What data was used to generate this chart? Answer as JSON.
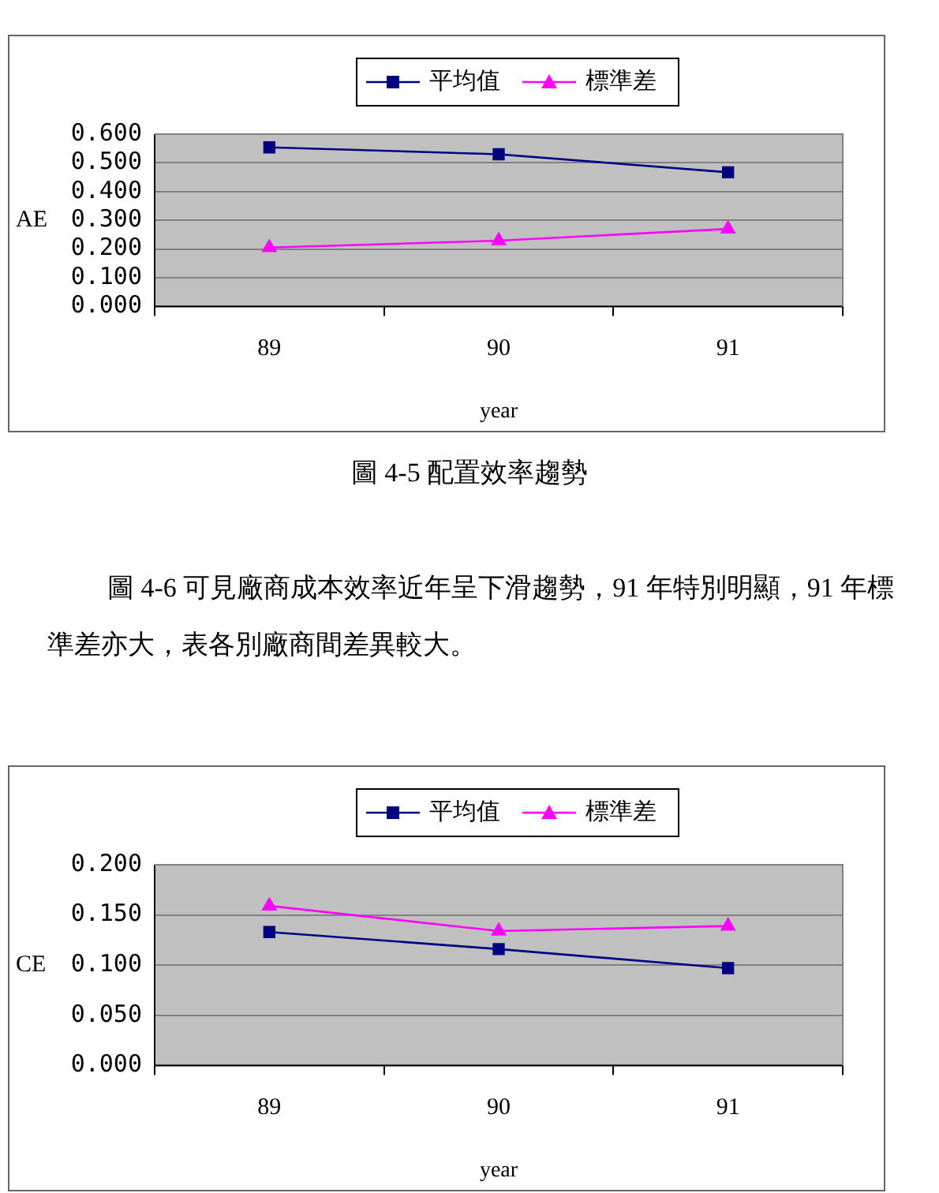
{
  "chart_data": [
    {
      "type": "line",
      "categories": [
        "89",
        "90",
        "91"
      ],
      "xlabel": "year",
      "ylabel": "AE",
      "ylim": [
        0,
        0.6
      ],
      "yticks": [
        {
          "value": 0,
          "label": "0.000"
        },
        {
          "value": 0.1,
          "label": "0.100"
        },
        {
          "value": 0.2,
          "label": "0.200"
        },
        {
          "value": 0.3,
          "label": "0.300"
        },
        {
          "value": 0.4,
          "label": "0.400"
        },
        {
          "value": 0.5,
          "label": "0.500"
        },
        {
          "value": 0.6,
          "label": "0.600"
        }
      ],
      "series": [
        {
          "name": "平均值",
          "color": "#000080",
          "marker": "square",
          "values": [
            0.554,
            0.53,
            0.467
          ]
        },
        {
          "name": "標準差",
          "color": "#ff00ff",
          "marker": "triangle",
          "values": [
            0.205,
            0.229,
            0.27
          ]
        }
      ],
      "grid": "y",
      "legend": "top",
      "annotations": [
        "圖 4-5 配置效率趨勢"
      ]
    },
    {
      "type": "line",
      "categories": [
        "89",
        "90",
        "91"
      ],
      "xlabel": "year",
      "ylabel": "CE",
      "ylim": [
        0,
        0.2
      ],
      "yticks": [
        {
          "value": 0,
          "label": "0.000"
        },
        {
          "value": 0.05,
          "label": "0.050"
        },
        {
          "value": 0.1,
          "label": "0.100"
        },
        {
          "value": 0.15,
          "label": "0.150"
        },
        {
          "value": 0.2,
          "label": "0.200"
        }
      ],
      "series": [
        {
          "name": "平均值",
          "color": "#000080",
          "marker": "square",
          "values": [
            0.133,
            0.116,
            0.097
          ]
        },
        {
          "name": "標準差",
          "color": "#ff00ff",
          "marker": "triangle",
          "values": [
            0.159,
            0.134,
            0.139
          ]
        }
      ],
      "grid": "y",
      "legend": "top",
      "annotations": [
        "圖 4-6 可見廠商成本效率近年呈下滑趨勢，91 年特別明顯，91 年標準差亦大，表各別廠商間差異較大。"
      ]
    }
  ]
}
